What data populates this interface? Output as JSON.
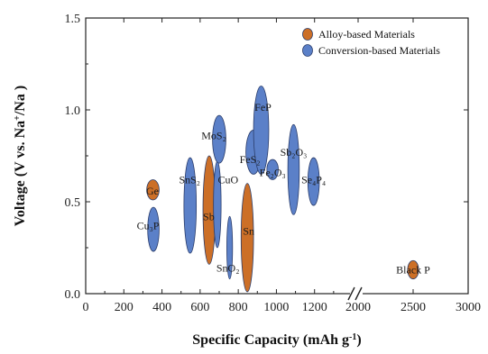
{
  "chart_data": {
    "type": "scatter",
    "title": "",
    "xlabel": "Specific Capacity (mAh g",
    "xlabel_sup": "-1",
    "xlabel_end": ")",
    "ylabel": "Voltage (V vs. Na",
    "ylabel_sup": "+",
    "ylabel_end": "/Na )",
    "x_ticks_main": [
      "0",
      "200",
      "400",
      "600",
      "800",
      "1000",
      "1200"
    ],
    "x_ticks_broken": [
      "2000",
      "2500",
      "3000"
    ],
    "y_ticks": [
      "0.0",
      "0.5",
      "1.0",
      "1.5"
    ],
    "xlim_main": [
      0,
      1400
    ],
    "xlim_broken": [
      2000,
      3000
    ],
    "axis_break_at": 1400,
    "ylim": [
      0,
      1.5
    ],
    "grid": false,
    "legend_position": "top-right",
    "colors": {
      "alloy": "#cc6f27",
      "conversion": "#5b80c8",
      "edge": "#2a3c6a"
    },
    "series": [
      {
        "name": "Alloy-based Materials",
        "key": "alloy",
        "points": [
          {
            "label": "Ge",
            "x": 350,
            "x_range": [
              320,
              385
            ],
            "y": 0.56,
            "y_range": [
              0.51,
              0.62
            ]
          },
          {
            "label": "Sb",
            "x": 645,
            "x_range": [
              615,
              680
            ],
            "y": 0.47,
            "y_range": [
              0.16,
              0.75
            ]
          },
          {
            "label": "Sn",
            "x": 845,
            "x_range": [
              815,
              880
            ],
            "y": 0.34,
            "y_range": [
              0.01,
              0.6
            ]
          },
          {
            "label": "Black P",
            "x": 2500,
            "x_range": [
              2450,
              2550
            ],
            "y": 0.13,
            "y_range": [
              0.08,
              0.18
            ]
          }
        ]
      },
      {
        "name": "Conversion-based Materials",
        "key": "conversion",
        "points": [
          {
            "label": "Cu₃P",
            "x": 355,
            "x_range": [
              325,
              385
            ],
            "y": 0.35,
            "y_range": [
              0.23,
              0.47
            ]
          },
          {
            "label": "SnS₂",
            "x": 545,
            "x_range": [
              515,
              580
            ],
            "y": 0.48,
            "y_range": [
              0.22,
              0.74
            ]
          },
          {
            "label": "CuO",
            "x": 690,
            "x_range": [
              670,
              710
            ],
            "y": 0.49,
            "y_range": [
              0.25,
              0.72
            ]
          },
          {
            "label": "MoS₂",
            "x": 700,
            "x_range": [
              665,
              735
            ],
            "y": 0.84,
            "y_range": [
              0.71,
              0.97
            ]
          },
          {
            "label": "SnO₂",
            "x": 755,
            "x_range": [
              740,
              770
            ],
            "y": 0.24,
            "y_range": [
              0.08,
              0.42
            ]
          },
          {
            "label": "FeS₂",
            "x": 880,
            "x_range": [
              840,
              920
            ],
            "y": 0.77,
            "y_range": [
              0.65,
              0.89
            ]
          },
          {
            "label": "FeP",
            "x": 920,
            "x_range": [
              880,
              960
            ],
            "y": 0.89,
            "y_range": [
              0.65,
              1.13
            ]
          },
          {
            "label": "Fe₂O₃",
            "x": 980,
            "x_range": [
              950,
              1010
            ],
            "y": 0.67,
            "y_range": [
              0.62,
              0.73
            ]
          },
          {
            "label": "Sb₂O₃",
            "x": 1090,
            "x_range": [
              1060,
              1120
            ],
            "y": 0.67,
            "y_range": [
              0.43,
              0.92
            ]
          },
          {
            "label": "Se₄P₄",
            "x": 1195,
            "x_range": [
              1165,
              1225
            ],
            "y": 0.61,
            "y_range": [
              0.48,
              0.74
            ]
          }
        ]
      }
    ]
  }
}
